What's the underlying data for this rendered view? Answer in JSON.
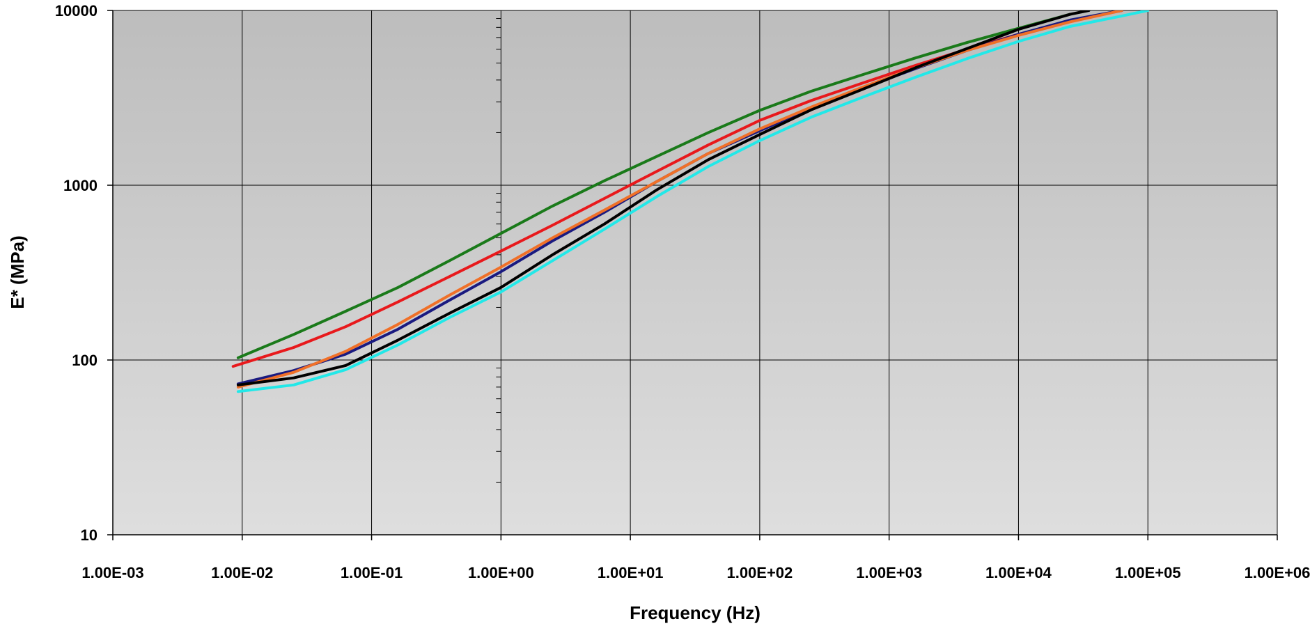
{
  "chart_data": {
    "type": "line",
    "xlabel": "Frequency (Hz)",
    "ylabel": "E* (MPa)",
    "x_scale": "log",
    "y_scale": "log",
    "xlim": [
      0.001,
      1000000
    ],
    "ylim": [
      10,
      10000
    ],
    "grid": true,
    "x_ticks": [
      0.001,
      0.01,
      0.1,
      1,
      10,
      100,
      1000,
      10000,
      100000,
      1000000
    ],
    "x_tick_labels": [
      "1.00E-03",
      "1.00E-02",
      "1.00E-01",
      "1.00E+00",
      "1.00E+01",
      "1.00E+02",
      "1.00E+03",
      "1.00E+04",
      "1.00E+05",
      "1.00E+06"
    ],
    "y_ticks": [
      10,
      100,
      1000,
      10000
    ],
    "y_tick_labels": [
      "10",
      "100",
      "1000",
      "10000"
    ],
    "series": [
      {
        "color": "#1a7a1a",
        "x": [
          0.0093,
          0.025,
          0.063,
          0.16,
          0.4,
          1,
          2.5,
          6.3,
          16,
          40,
          100,
          250,
          630,
          1600,
          4000,
          10000,
          25000
        ],
        "y": [
          103,
          140,
          190,
          260,
          370,
          530,
          760,
          1060,
          1460,
          2000,
          2680,
          3450,
          4300,
          5350,
          6550,
          7900,
          9500
        ]
      },
      {
        "color": "#e8191c",
        "x": [
          0.0085,
          0.025,
          0.063,
          0.16,
          0.4,
          1,
          2.5,
          6.3,
          16,
          40,
          100,
          250,
          630,
          1600,
          4000,
          10000,
          25000,
          63000
        ],
        "y": [
          92,
          118,
          155,
          215,
          300,
          420,
          590,
          840,
          1200,
          1700,
          2350,
          3050,
          3850,
          4850,
          6000,
          7300,
          8700,
          10000
        ]
      },
      {
        "color": "#1a1a80",
        "x": [
          0.0093,
          0.025,
          0.063,
          0.16,
          0.4,
          1,
          2.5,
          6.3,
          16,
          40,
          100,
          250,
          630,
          1600,
          4000,
          10000,
          25000,
          63000
        ],
        "y": [
          73,
          87,
          108,
          150,
          220,
          320,
          480,
          700,
          1050,
          1520,
          2050,
          2750,
          3600,
          4650,
          5900,
          7300,
          8800,
          10000
        ]
      },
      {
        "color": "#f07028",
        "x": [
          0.0093,
          0.025,
          0.063,
          0.16,
          0.4,
          1,
          2.5,
          6.3,
          16,
          40,
          100,
          250,
          630,
          1600,
          4000,
          10000,
          25000,
          63000
        ],
        "y": [
          70,
          85,
          112,
          160,
          235,
          340,
          500,
          720,
          1050,
          1520,
          2100,
          2800,
          3650,
          4700,
          5900,
          7200,
          8600,
          10000
        ]
      },
      {
        "color": "#000000",
        "x": [
          0.0093,
          0.025,
          0.063,
          0.16,
          0.4,
          1,
          2.5,
          6.3,
          16,
          40,
          100,
          250,
          630,
          1600,
          4000,
          10000,
          25000,
          35000
        ],
        "y": [
          72,
          79,
          93,
          130,
          185,
          260,
          400,
          600,
          940,
          1400,
          1950,
          2700,
          3550,
          4700,
          6050,
          7800,
          9500,
          10000
        ]
      },
      {
        "color": "#22e8e8",
        "x": [
          0.0093,
          0.025,
          0.063,
          0.16,
          0.4,
          1,
          2.5,
          6.3,
          16,
          40,
          100,
          250,
          630,
          1600,
          4000,
          10000,
          25000,
          63000,
          100000
        ],
        "y": [
          66,
          72,
          88,
          122,
          175,
          245,
          370,
          560,
          860,
          1280,
          1800,
          2450,
          3200,
          4150,
          5300,
          6650,
          8100,
          9300,
          10000
        ]
      }
    ]
  }
}
